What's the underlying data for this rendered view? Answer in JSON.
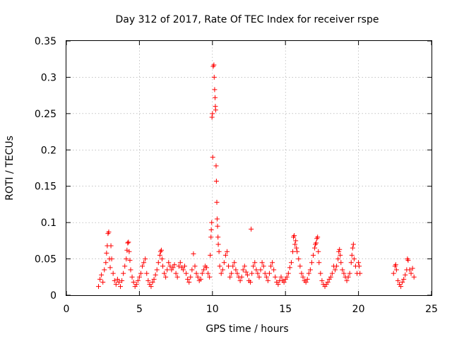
{
  "chart_data": {
    "type": "scatter",
    "title": "Day 312 of 2017, Rate Of TEC Index for receiver rspe",
    "xlabel": "GPS time / hours",
    "ylabel": "ROTI / TECUs",
    "xlim": [
      0,
      25
    ],
    "ylim": [
      0,
      0.35
    ],
    "xticks": [
      0,
      5,
      10,
      15,
      20,
      25
    ],
    "yticks": [
      0,
      0.05,
      0.1,
      0.15,
      0.2,
      0.25,
      0.3,
      0.35
    ],
    "xtick_labels": [
      "0",
      "5",
      "10",
      "15",
      "20",
      "25"
    ],
    "ytick_labels": [
      "0",
      "0.05",
      "0.1",
      "0.15",
      "0.2",
      "0.25",
      "0.3",
      "0.35"
    ],
    "grid": true,
    "marker": "plus",
    "series": [
      {
        "name": "ROTI",
        "color": "#ff0000",
        "points": [
          [
            2.2,
            0.012
          ],
          [
            2.3,
            0.022
          ],
          [
            2.4,
            0.028
          ],
          [
            2.5,
            0.018
          ],
          [
            2.6,
            0.035
          ],
          [
            2.7,
            0.045
          ],
          [
            2.75,
            0.058
          ],
          [
            2.8,
            0.068
          ],
          [
            2.85,
            0.085
          ],
          [
            2.9,
            0.087
          ],
          [
            2.95,
            0.05
          ],
          [
            3.0,
            0.038
          ],
          [
            3.05,
            0.068
          ],
          [
            3.1,
            0.05
          ],
          [
            3.2,
            0.03
          ],
          [
            3.3,
            0.02
          ],
          [
            3.4,
            0.015
          ],
          [
            3.5,
            0.022
          ],
          [
            3.6,
            0.018
          ],
          [
            3.7,
            0.012
          ],
          [
            3.8,
            0.02
          ],
          [
            3.9,
            0.03
          ],
          [
            4.0,
            0.04
          ],
          [
            4.1,
            0.05
          ],
          [
            4.15,
            0.062
          ],
          [
            4.2,
            0.072
          ],
          [
            4.25,
            0.073
          ],
          [
            4.3,
            0.06
          ],
          [
            4.35,
            0.048
          ],
          [
            4.4,
            0.035
          ],
          [
            4.5,
            0.025
          ],
          [
            4.6,
            0.018
          ],
          [
            4.7,
            0.012
          ],
          [
            4.8,
            0.015
          ],
          [
            4.9,
            0.02
          ],
          [
            5.0,
            0.025
          ],
          [
            5.1,
            0.03
          ],
          [
            5.2,
            0.04
          ],
          [
            5.3,
            0.045
          ],
          [
            5.4,
            0.05
          ],
          [
            5.5,
            0.03
          ],
          [
            5.6,
            0.02
          ],
          [
            5.7,
            0.015
          ],
          [
            5.8,
            0.012
          ],
          [
            5.9,
            0.018
          ],
          [
            6.0,
            0.022
          ],
          [
            6.1,
            0.028
          ],
          [
            6.2,
            0.035
          ],
          [
            6.3,
            0.045
          ],
          [
            6.4,
            0.055
          ],
          [
            6.45,
            0.06
          ],
          [
            6.5,
            0.062
          ],
          [
            6.55,
            0.05
          ],
          [
            6.6,
            0.04
          ],
          [
            6.7,
            0.03
          ],
          [
            6.8,
            0.025
          ],
          [
            6.9,
            0.035
          ],
          [
            7.0,
            0.045
          ],
          [
            7.1,
            0.04
          ],
          [
            7.2,
            0.035
          ],
          [
            7.3,
            0.038
          ],
          [
            7.4,
            0.042
          ],
          [
            7.5,
            0.03
          ],
          [
            7.6,
            0.025
          ],
          [
            7.7,
            0.04
          ],
          [
            7.8,
            0.045
          ],
          [
            7.9,
            0.038
          ],
          [
            8.0,
            0.035
          ],
          [
            8.1,
            0.04
          ],
          [
            8.2,
            0.03
          ],
          [
            8.3,
            0.022
          ],
          [
            8.4,
            0.018
          ],
          [
            8.5,
            0.025
          ],
          [
            8.6,
            0.035
          ],
          [
            8.7,
            0.057
          ],
          [
            8.8,
            0.04
          ],
          [
            8.9,
            0.03
          ],
          [
            9.0,
            0.025
          ],
          [
            9.1,
            0.02
          ],
          [
            9.2,
            0.022
          ],
          [
            9.3,
            0.03
          ],
          [
            9.4,
            0.035
          ],
          [
            9.5,
            0.04
          ],
          [
            9.6,
            0.038
          ],
          [
            9.7,
            0.03
          ],
          [
            9.8,
            0.025
          ],
          [
            9.85,
            0.055
          ],
          [
            9.9,
            0.08
          ],
          [
            9.92,
            0.09
          ],
          [
            9.95,
            0.1
          ],
          [
            9.97,
            0.245
          ],
          [
            10.0,
            0.25
          ],
          [
            10.02,
            0.19
          ],
          [
            10.05,
            0.315
          ],
          [
            10.1,
            0.317
          ],
          [
            10.12,
            0.3
          ],
          [
            10.15,
            0.283
          ],
          [
            10.18,
            0.272
          ],
          [
            10.2,
            0.26
          ],
          [
            10.22,
            0.255
          ],
          [
            10.25,
            0.178
          ],
          [
            10.27,
            0.157
          ],
          [
            10.3,
            0.128
          ],
          [
            10.32,
            0.105
          ],
          [
            10.35,
            0.095
          ],
          [
            10.38,
            0.08
          ],
          [
            10.4,
            0.07
          ],
          [
            10.45,
            0.06
          ],
          [
            10.5,
            0.04
          ],
          [
            10.6,
            0.03
          ],
          [
            10.7,
            0.035
          ],
          [
            10.8,
            0.045
          ],
          [
            10.9,
            0.055
          ],
          [
            11.0,
            0.06
          ],
          [
            11.1,
            0.04
          ],
          [
            11.2,
            0.025
          ],
          [
            11.3,
            0.03
          ],
          [
            11.4,
            0.04
          ],
          [
            11.5,
            0.045
          ],
          [
            11.6,
            0.035
          ],
          [
            11.7,
            0.03
          ],
          [
            11.8,
            0.025
          ],
          [
            11.9,
            0.02
          ],
          [
            12.0,
            0.025
          ],
          [
            12.1,
            0.035
          ],
          [
            12.2,
            0.04
          ],
          [
            12.3,
            0.032
          ],
          [
            12.4,
            0.028
          ],
          [
            12.5,
            0.02
          ],
          [
            12.6,
            0.018
          ],
          [
            12.65,
            0.091
          ],
          [
            12.7,
            0.03
          ],
          [
            12.8,
            0.04
          ],
          [
            12.9,
            0.045
          ],
          [
            13.0,
            0.035
          ],
          [
            13.1,
            0.03
          ],
          [
            13.2,
            0.025
          ],
          [
            13.3,
            0.035
          ],
          [
            13.4,
            0.045
          ],
          [
            13.5,
            0.04
          ],
          [
            13.6,
            0.03
          ],
          [
            13.7,
            0.025
          ],
          [
            13.8,
            0.02
          ],
          [
            13.9,
            0.03
          ],
          [
            14.0,
            0.04
          ],
          [
            14.1,
            0.045
          ],
          [
            14.2,
            0.035
          ],
          [
            14.3,
            0.025
          ],
          [
            14.4,
            0.018
          ],
          [
            14.5,
            0.015
          ],
          [
            14.6,
            0.02
          ],
          [
            14.7,
            0.025
          ],
          [
            14.8,
            0.02
          ],
          [
            14.9,
            0.018
          ],
          [
            15.0,
            0.022
          ],
          [
            15.1,
            0.025
          ],
          [
            15.2,
            0.03
          ],
          [
            15.3,
            0.038
          ],
          [
            15.4,
            0.045
          ],
          [
            15.5,
            0.06
          ],
          [
            15.55,
            0.08
          ],
          [
            15.6,
            0.082
          ],
          [
            15.65,
            0.07
          ],
          [
            15.7,
            0.075
          ],
          [
            15.75,
            0.065
          ],
          [
            15.8,
            0.06
          ],
          [
            15.9,
            0.05
          ],
          [
            16.0,
            0.04
          ],
          [
            16.1,
            0.03
          ],
          [
            16.2,
            0.025
          ],
          [
            16.3,
            0.02
          ],
          [
            16.4,
            0.018
          ],
          [
            16.5,
            0.022
          ],
          [
            16.6,
            0.03
          ],
          [
            16.7,
            0.035
          ],
          [
            16.8,
            0.045
          ],
          [
            16.9,
            0.055
          ],
          [
            17.0,
            0.065
          ],
          [
            17.05,
            0.07
          ],
          [
            17.1,
            0.072
          ],
          [
            17.15,
            0.078
          ],
          [
            17.2,
            0.08
          ],
          [
            17.25,
            0.06
          ],
          [
            17.3,
            0.045
          ],
          [
            17.4,
            0.03
          ],
          [
            17.5,
            0.02
          ],
          [
            17.6,
            0.015
          ],
          [
            17.7,
            0.012
          ],
          [
            17.8,
            0.015
          ],
          [
            17.9,
            0.018
          ],
          [
            18.0,
            0.022
          ],
          [
            18.1,
            0.025
          ],
          [
            18.2,
            0.03
          ],
          [
            18.3,
            0.04
          ],
          [
            18.4,
            0.035
          ],
          [
            18.5,
            0.04
          ],
          [
            18.6,
            0.05
          ],
          [
            18.65,
            0.06
          ],
          [
            18.7,
            0.063
          ],
          [
            18.75,
            0.055
          ],
          [
            18.8,
            0.045
          ],
          [
            18.9,
            0.035
          ],
          [
            19.0,
            0.03
          ],
          [
            19.1,
            0.025
          ],
          [
            19.2,
            0.02
          ],
          [
            19.3,
            0.025
          ],
          [
            19.4,
            0.03
          ],
          [
            19.5,
            0.045
          ],
          [
            19.55,
            0.055
          ],
          [
            19.6,
            0.065
          ],
          [
            19.65,
            0.07
          ],
          [
            19.7,
            0.05
          ],
          [
            19.8,
            0.04
          ],
          [
            19.9,
            0.03
          ],
          [
            20.0,
            0.045
          ],
          [
            20.05,
            0.04
          ],
          [
            20.1,
            0.03
          ],
          [
            22.4,
            0.03
          ],
          [
            22.5,
            0.04
          ],
          [
            22.55,
            0.042
          ],
          [
            22.6,
            0.035
          ],
          [
            22.7,
            0.02
          ],
          [
            22.8,
            0.015
          ],
          [
            22.9,
            0.012
          ],
          [
            23.0,
            0.018
          ],
          [
            23.1,
            0.022
          ],
          [
            23.2,
            0.028
          ],
          [
            23.3,
            0.035
          ],
          [
            23.35,
            0.05
          ],
          [
            23.4,
            0.048
          ],
          [
            23.5,
            0.035
          ],
          [
            23.6,
            0.03
          ],
          [
            23.7,
            0.037
          ],
          [
            23.8,
            0.025
          ]
        ]
      }
    ]
  }
}
